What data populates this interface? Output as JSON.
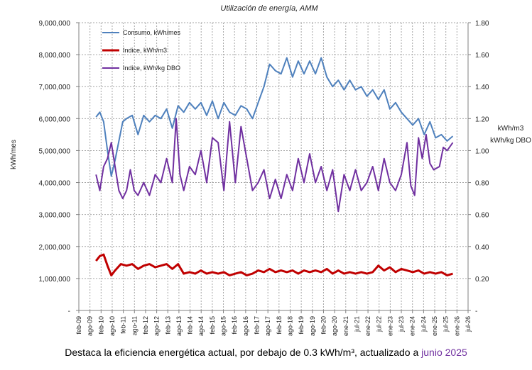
{
  "caption": {
    "text": "Destaca la eficiencia energética actual, por debajo de 0.3 kWh/m³, actualizado a",
    "highlight": "junio 2025",
    "highlight_color": "#7030a0"
  },
  "chart_data": {
    "type": "line",
    "title": "Utilización de energía, AMM",
    "ylabel": "kWh/mes",
    "y2label_lines": [
      "kWh/m3",
      "kWh/kg DBO"
    ],
    "grid": true,
    "legend_position": "top-left",
    "xlim": [
      "2009-02",
      "2026-02"
    ],
    "ylim": [
      0,
      9000000
    ],
    "y2lim": [
      0,
      1.8
    ],
    "y_ticks": [
      "-",
      "1,000,000",
      "2,000,000",
      "3,000,000",
      "4,000,000",
      "5,000,000",
      "6,000,000",
      "7,000,000",
      "8,000,000",
      "9,000,000"
    ],
    "y2_ticks": [
      "-",
      "0.20",
      "0.40",
      "0.60",
      "0.80",
      "1.00",
      "1.20",
      "1.40",
      "1.60",
      "1.80"
    ],
    "x_ticks": [
      "feb-09",
      "ago-09",
      "feb-10",
      "ago-10",
      "feb-11",
      "ago-11",
      "feb-12",
      "ago-12",
      "feb-13",
      "ago-13",
      "feb-14",
      "ago-14",
      "feb-15",
      "ago-15",
      "feb-16",
      "ago-16",
      "feb-17",
      "ago-17",
      "feb-18",
      "ago-18",
      "feb-19",
      "ago-19",
      "feb-20",
      "ago-20",
      "ene-21",
      "jul-21",
      "ene-22",
      "jul-22",
      "ene-23",
      "jul-23",
      "ene-24",
      "jul-24",
      "ene-25",
      "jul-25",
      "ene-26",
      "jul-26"
    ],
    "series": [
      {
        "name": "Consumo, kWh/mes",
        "axis": "left",
        "color": "#4f81bd",
        "points": [
          [
            "2009-11",
            6050000
          ],
          [
            "2010-01",
            6200000
          ],
          [
            "2010-03",
            5900000
          ],
          [
            "2010-05",
            5000000
          ],
          [
            "2010-07",
            4200000
          ],
          [
            "2010-09",
            4700000
          ],
          [
            "2010-11",
            5300000
          ],
          [
            "2011-01",
            5900000
          ],
          [
            "2011-03",
            6000000
          ],
          [
            "2011-06",
            6100000
          ],
          [
            "2011-09",
            5500000
          ],
          [
            "2011-12",
            6100000
          ],
          [
            "2012-03",
            5900000
          ],
          [
            "2012-06",
            6100000
          ],
          [
            "2012-09",
            6000000
          ],
          [
            "2012-12",
            6300000
          ],
          [
            "2013-03",
            5700000
          ],
          [
            "2013-06",
            6400000
          ],
          [
            "2013-09",
            6200000
          ],
          [
            "2013-12",
            6500000
          ],
          [
            "2014-03",
            6300000
          ],
          [
            "2014-06",
            6500000
          ],
          [
            "2014-09",
            6100000
          ],
          [
            "2014-12",
            6550000
          ],
          [
            "2015-03",
            6000000
          ],
          [
            "2015-06",
            6500000
          ],
          [
            "2015-09",
            6200000
          ],
          [
            "2015-12",
            6100000
          ],
          [
            "2016-03",
            6400000
          ],
          [
            "2016-06",
            6300000
          ],
          [
            "2016-09",
            6000000
          ],
          [
            "2016-12",
            6500000
          ],
          [
            "2017-03",
            7000000
          ],
          [
            "2017-06",
            7700000
          ],
          [
            "2017-09",
            7500000
          ],
          [
            "2017-12",
            7400000
          ],
          [
            "2018-03",
            7900000
          ],
          [
            "2018-06",
            7300000
          ],
          [
            "2018-09",
            7800000
          ],
          [
            "2018-12",
            7400000
          ],
          [
            "2019-03",
            7800000
          ],
          [
            "2019-06",
            7400000
          ],
          [
            "2019-09",
            7900000
          ],
          [
            "2019-12",
            7300000
          ],
          [
            "2020-03",
            7000000
          ],
          [
            "2020-06",
            7200000
          ],
          [
            "2020-09",
            6900000
          ],
          [
            "2020-12",
            7200000
          ],
          [
            "2021-03",
            6900000
          ],
          [
            "2021-06",
            7000000
          ],
          [
            "2021-09",
            6700000
          ],
          [
            "2021-12",
            6900000
          ],
          [
            "2022-03",
            6600000
          ],
          [
            "2022-06",
            6900000
          ],
          [
            "2022-09",
            6300000
          ],
          [
            "2022-12",
            6500000
          ],
          [
            "2023-03",
            6200000
          ],
          [
            "2023-06",
            6000000
          ],
          [
            "2023-09",
            5800000
          ],
          [
            "2023-12",
            6000000
          ],
          [
            "2024-03",
            5500000
          ],
          [
            "2024-06",
            5900000
          ],
          [
            "2024-09",
            5400000
          ],
          [
            "2024-12",
            5500000
          ],
          [
            "2025-03",
            5300000
          ],
          [
            "2025-06",
            5450000
          ]
        ]
      },
      {
        "name": "Indice, kWh/m3",
        "axis": "right",
        "color": "#c00000",
        "points": [
          [
            "2009-11",
            0.31
          ],
          [
            "2010-01",
            0.34
          ],
          [
            "2010-03",
            0.35
          ],
          [
            "2010-05",
            0.28
          ],
          [
            "2010-07",
            0.22
          ],
          [
            "2010-09",
            0.25
          ],
          [
            "2010-12",
            0.29
          ],
          [
            "2011-03",
            0.28
          ],
          [
            "2011-06",
            0.29
          ],
          [
            "2011-09",
            0.26
          ],
          [
            "2011-12",
            0.28
          ],
          [
            "2012-03",
            0.29
          ],
          [
            "2012-06",
            0.27
          ],
          [
            "2012-09",
            0.28
          ],
          [
            "2012-12",
            0.29
          ],
          [
            "2013-03",
            0.26
          ],
          [
            "2013-06",
            0.29
          ],
          [
            "2013-09",
            0.23
          ],
          [
            "2013-12",
            0.24
          ],
          [
            "2014-03",
            0.23
          ],
          [
            "2014-06",
            0.25
          ],
          [
            "2014-09",
            0.23
          ],
          [
            "2014-12",
            0.24
          ],
          [
            "2015-03",
            0.23
          ],
          [
            "2015-06",
            0.24
          ],
          [
            "2015-09",
            0.22
          ],
          [
            "2015-12",
            0.23
          ],
          [
            "2016-03",
            0.24
          ],
          [
            "2016-06",
            0.22
          ],
          [
            "2016-09",
            0.23
          ],
          [
            "2016-12",
            0.25
          ],
          [
            "2017-03",
            0.24
          ],
          [
            "2017-06",
            0.26
          ],
          [
            "2017-09",
            0.24
          ],
          [
            "2017-12",
            0.25
          ],
          [
            "2018-03",
            0.24
          ],
          [
            "2018-06",
            0.25
          ],
          [
            "2018-09",
            0.23
          ],
          [
            "2018-12",
            0.25
          ],
          [
            "2019-03",
            0.24
          ],
          [
            "2019-06",
            0.25
          ],
          [
            "2019-09",
            0.24
          ],
          [
            "2019-12",
            0.26
          ],
          [
            "2020-03",
            0.23
          ],
          [
            "2020-06",
            0.25
          ],
          [
            "2020-09",
            0.23
          ],
          [
            "2020-12",
            0.24
          ],
          [
            "2021-03",
            0.23
          ],
          [
            "2021-06",
            0.24
          ],
          [
            "2021-09",
            0.23
          ],
          [
            "2021-12",
            0.24
          ],
          [
            "2022-03",
            0.28
          ],
          [
            "2022-06",
            0.25
          ],
          [
            "2022-09",
            0.27
          ],
          [
            "2022-12",
            0.24
          ],
          [
            "2023-03",
            0.26
          ],
          [
            "2023-06",
            0.25
          ],
          [
            "2023-09",
            0.24
          ],
          [
            "2023-12",
            0.25
          ],
          [
            "2024-03",
            0.23
          ],
          [
            "2024-06",
            0.24
          ],
          [
            "2024-09",
            0.23
          ],
          [
            "2024-12",
            0.24
          ],
          [
            "2025-03",
            0.22
          ],
          [
            "2025-06",
            0.23
          ]
        ]
      },
      {
        "name": "Indice, kWh/kg DBO",
        "axis": "right",
        "color": "#7030a0",
        "points": [
          [
            "2009-11",
            0.85
          ],
          [
            "2010-01",
            0.75
          ],
          [
            "2010-03",
            0.9
          ],
          [
            "2010-05",
            0.95
          ],
          [
            "2010-07",
            1.05
          ],
          [
            "2010-09",
            0.9
          ],
          [
            "2010-11",
            0.75
          ],
          [
            "2011-01",
            0.7
          ],
          [
            "2011-03",
            0.75
          ],
          [
            "2011-05",
            0.88
          ],
          [
            "2011-07",
            0.75
          ],
          [
            "2011-09",
            0.72
          ],
          [
            "2011-12",
            0.8
          ],
          [
            "2012-03",
            0.72
          ],
          [
            "2012-06",
            0.85
          ],
          [
            "2012-09",
            0.8
          ],
          [
            "2012-12",
            0.95
          ],
          [
            "2013-03",
            0.8
          ],
          [
            "2013-05",
            1.2
          ],
          [
            "2013-07",
            0.85
          ],
          [
            "2013-09",
            0.75
          ],
          [
            "2013-12",
            0.9
          ],
          [
            "2014-03",
            0.85
          ],
          [
            "2014-06",
            1.0
          ],
          [
            "2014-09",
            0.8
          ],
          [
            "2014-12",
            1.08
          ],
          [
            "2015-03",
            1.05
          ],
          [
            "2015-06",
            0.75
          ],
          [
            "2015-09",
            1.18
          ],
          [
            "2015-12",
            0.8
          ],
          [
            "2016-03",
            1.15
          ],
          [
            "2016-06",
            0.95
          ],
          [
            "2016-09",
            0.75
          ],
          [
            "2016-12",
            0.8
          ],
          [
            "2017-03",
            0.88
          ],
          [
            "2017-06",
            0.7
          ],
          [
            "2017-09",
            0.82
          ],
          [
            "2017-12",
            0.7
          ],
          [
            "2018-03",
            0.85
          ],
          [
            "2018-06",
            0.75
          ],
          [
            "2018-09",
            0.95
          ],
          [
            "2018-12",
            0.8
          ],
          [
            "2019-03",
            0.98
          ],
          [
            "2019-06",
            0.8
          ],
          [
            "2019-09",
            0.9
          ],
          [
            "2019-12",
            0.75
          ],
          [
            "2020-03",
            0.88
          ],
          [
            "2020-06",
            0.62
          ],
          [
            "2020-09",
            0.85
          ],
          [
            "2020-12",
            0.75
          ],
          [
            "2021-03",
            0.88
          ],
          [
            "2021-06",
            0.75
          ],
          [
            "2021-09",
            0.8
          ],
          [
            "2021-12",
            0.9
          ],
          [
            "2022-03",
            0.75
          ],
          [
            "2022-06",
            0.95
          ],
          [
            "2022-09",
            0.8
          ],
          [
            "2022-12",
            0.75
          ],
          [
            "2023-03",
            0.85
          ],
          [
            "2023-06",
            1.05
          ],
          [
            "2023-08",
            0.78
          ],
          [
            "2023-10",
            0.72
          ],
          [
            "2023-12",
            1.08
          ],
          [
            "2024-02",
            0.95
          ],
          [
            "2024-04",
            1.1
          ],
          [
            "2024-06",
            0.92
          ],
          [
            "2024-08",
            0.88
          ],
          [
            "2024-11",
            0.9
          ],
          [
            "2025-01",
            1.02
          ],
          [
            "2025-03",
            1.0
          ],
          [
            "2025-06",
            1.05
          ]
        ]
      }
    ]
  }
}
